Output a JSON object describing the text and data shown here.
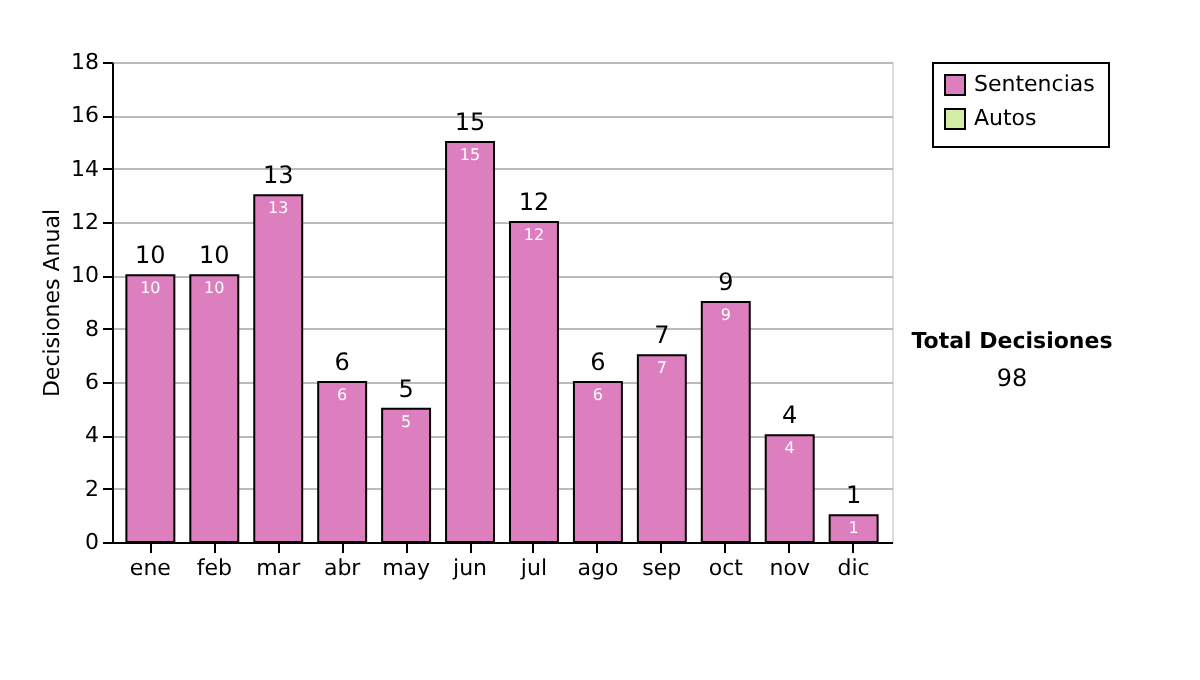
{
  "chart_data": {
    "type": "bar",
    "ylabel": "Decisiones Anual",
    "categories": [
      "ene",
      "feb",
      "mar",
      "abr",
      "may",
      "jun",
      "jul",
      "ago",
      "sep",
      "oct",
      "nov",
      "dic"
    ],
    "series": [
      {
        "name": "Sentencias",
        "color": "#dd7fbf",
        "values": [
          10,
          10,
          13,
          6,
          5,
          15,
          12,
          6,
          7,
          9,
          4,
          1
        ]
      },
      {
        "name": "Autos",
        "color": "#d4eca4",
        "values": [
          null,
          null,
          null,
          null,
          null,
          null,
          null,
          null,
          null,
          null,
          null,
          null
        ]
      }
    ],
    "data_labels": true,
    "totals": [
      "10",
      "10",
      "13",
      "6",
      "5",
      "15",
      "12",
      "6",
      "7",
      "9",
      "4",
      "1"
    ],
    "ylim": [
      0,
      18
    ],
    "yticks": [
      0,
      2,
      4,
      6,
      8,
      10,
      12,
      14,
      16,
      18
    ],
    "grid": "y",
    "legend": "right",
    "annotations": [
      "Total Decisiones",
      "98"
    ]
  }
}
